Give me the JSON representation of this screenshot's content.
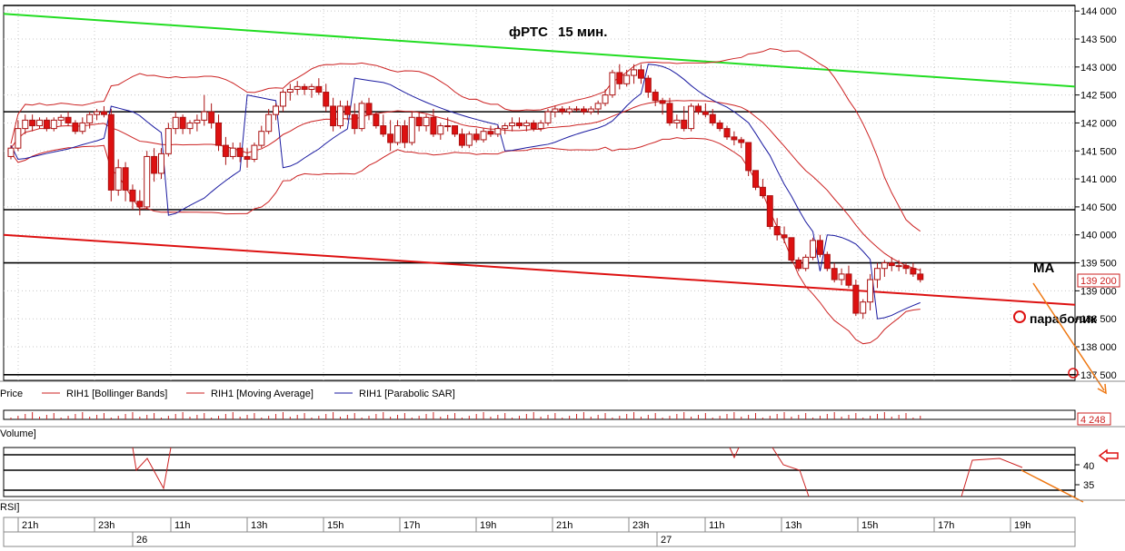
{
  "chart_data": {
    "type": "candlestick",
    "title": "фРТС",
    "subtitle": "15 мин.",
    "price_axis": {
      "ticks": [
        "144 000",
        "143 500",
        "143 000",
        "142 500",
        "142 000",
        "141 500",
        "141 000",
        "140 500",
        "140 000",
        "139 500",
        "139 000",
        "138 500",
        "138 000",
        "137 500"
      ],
      "ylim": [
        137400,
        144100
      ],
      "current_price_label": "139 200"
    },
    "time_axis": {
      "ticks": [
        "21h",
        "23h",
        "11h",
        "13h",
        "15h",
        "17h",
        "19h",
        "21h",
        "23h",
        "11h",
        "13h",
        "15h",
        "17h",
        "19h"
      ],
      "days": [
        "26",
        "27"
      ]
    },
    "candles": [
      [
        141400,
        141600,
        141350,
        141550
      ],
      [
        141550,
        142050,
        141500,
        141900
      ],
      [
        141900,
        142150,
        141800,
        142050
      ],
      [
        142050,
        142150,
        141850,
        141950
      ],
      [
        141950,
        142100,
        141900,
        142050
      ],
      [
        142050,
        142100,
        141850,
        141900
      ],
      [
        141900,
        142100,
        141850,
        142050
      ],
      [
        142050,
        142150,
        141950,
        142100
      ],
      [
        142100,
        142200,
        141950,
        142000
      ],
      [
        142000,
        142050,
        141800,
        141850
      ],
      [
        141850,
        142100,
        141800,
        142000
      ],
      [
        142000,
        142200,
        141900,
        142150
      ],
      [
        142150,
        142250,
        142050,
        142200
      ],
      [
        142200,
        142300,
        142100,
        142150
      ],
      [
        142150,
        142250,
        140600,
        140800
      ],
      [
        140800,
        141350,
        140700,
        141200
      ],
      [
        141200,
        141300,
        140600,
        140800
      ],
      [
        140800,
        140900,
        140450,
        140600
      ],
      [
        140600,
        140800,
        140350,
        140500
      ],
      [
        140500,
        141500,
        140450,
        141400
      ],
      [
        141400,
        141550,
        140950,
        141100
      ],
      [
        141100,
        141550,
        141000,
        141450
      ],
      [
        141450,
        142000,
        141400,
        141900
      ],
      [
        141900,
        142200,
        141800,
        142100
      ],
      [
        142100,
        142150,
        141800,
        141900
      ],
      [
        141900,
        142050,
        141800,
        142000
      ],
      [
        142000,
        142150,
        141850,
        142050
      ],
      [
        142050,
        142500,
        141950,
        142200
      ],
      [
        142200,
        142350,
        141900,
        142000
      ],
      [
        142000,
        142150,
        141500,
        141600
      ],
      [
        141600,
        141750,
        141250,
        141400
      ],
      [
        141400,
        141650,
        141350,
        141550
      ],
      [
        141550,
        141650,
        141300,
        141400
      ],
      [
        141400,
        141550,
        141200,
        141350
      ],
      [
        141350,
        141650,
        141300,
        141600
      ],
      [
        141600,
        141950,
        141550,
        141850
      ],
      [
        141850,
        142250,
        141800,
        142150
      ],
      [
        142150,
        142350,
        142050,
        142300
      ],
      [
        142300,
        142600,
        142200,
        142550
      ],
      [
        142550,
        142700,
        142400,
        142600
      ],
      [
        142600,
        142750,
        142500,
        142650
      ],
      [
        142650,
        142700,
        142500,
        142600
      ],
      [
        142600,
        142700,
        142450,
        142650
      ],
      [
        142650,
        142800,
        142500,
        142550
      ],
      [
        142550,
        142700,
        142200,
        142300
      ],
      [
        142300,
        142450,
        141850,
        141950
      ],
      [
        141950,
        142400,
        141900,
        142300
      ],
      [
        142300,
        142400,
        142050,
        142150
      ],
      [
        142150,
        142350,
        141800,
        141900
      ],
      [
        141900,
        142400,
        141850,
        142350
      ],
      [
        142350,
        142450,
        142050,
        142150
      ],
      [
        142150,
        142200,
        141900,
        141950
      ],
      [
        141950,
        142150,
        141750,
        141800
      ],
      [
        141800,
        142050,
        141500,
        141650
      ],
      [
        141650,
        142050,
        141600,
        141950
      ],
      [
        141950,
        142050,
        141550,
        141650
      ],
      [
        141650,
        142200,
        141600,
        142100
      ],
      [
        142100,
        142200,
        141850,
        141950
      ],
      [
        141950,
        142150,
        141850,
        142100
      ],
      [
        142100,
        142250,
        141750,
        141800
      ],
      [
        141800,
        142000,
        141700,
        141950
      ],
      [
        141950,
        142100,
        141850,
        141950
      ],
      [
        141950,
        141950,
        141750,
        141800
      ],
      [
        141800,
        141900,
        141550,
        141600
      ],
      [
        141600,
        141850,
        141550,
        141800
      ],
      [
        141800,
        141900,
        141650,
        141700
      ],
      [
        141700,
        141900,
        141650,
        141850
      ],
      [
        141850,
        141950,
        141750,
        141800
      ],
      [
        141800,
        141950,
        141750,
        141900
      ],
      [
        141900,
        142000,
        141800,
        141950
      ],
      [
        141950,
        142100,
        141850,
        142000
      ],
      [
        142000,
        142100,
        141900,
        141950
      ],
      [
        141950,
        142050,
        141850,
        142000
      ],
      [
        142000,
        142050,
        141850,
        141900
      ],
      [
        141900,
        142050,
        141850,
        142000
      ],
      [
        142000,
        142250,
        141950,
        142200
      ],
      [
        142200,
        142300,
        142100,
        142250
      ],
      [
        142250,
        142300,
        142150,
        142200
      ],
      [
        142200,
        142300,
        142150,
        142250
      ],
      [
        142250,
        142300,
        142200,
        142250
      ],
      [
        142250,
        142300,
        142150,
        142200
      ],
      [
        142200,
        142300,
        142150,
        142250
      ],
      [
        142250,
        142400,
        142150,
        142350
      ],
      [
        142350,
        142600,
        142300,
        142500
      ],
      [
        142500,
        142950,
        142450,
        142900
      ],
      [
        142900,
        143050,
        142600,
        142700
      ],
      [
        142700,
        142950,
        142650,
        142850
      ],
      [
        142850,
        143050,
        142700,
        142950
      ],
      [
        142950,
        143050,
        142700,
        142800
      ],
      [
        142800,
        142850,
        142450,
        142550
      ],
      [
        142550,
        142600,
        142300,
        142400
      ],
      [
        142400,
        142450,
        142150,
        142350
      ],
      [
        142350,
        142450,
        141950,
        142000
      ],
      [
        142000,
        142150,
        141900,
        142050
      ],
      [
        142050,
        142300,
        141850,
        141900
      ],
      [
        141900,
        142350,
        141850,
        142300
      ],
      [
        142300,
        142350,
        142150,
        142200
      ],
      [
        142200,
        142350,
        142100,
        142150
      ],
      [
        142150,
        142250,
        141950,
        142000
      ],
      [
        142000,
        142050,
        141850,
        141900
      ],
      [
        141900,
        141950,
        141700,
        141750
      ],
      [
        141750,
        141850,
        141600,
        141700
      ],
      [
        141700,
        141750,
        141550,
        141650
      ],
      [
        141650,
        141650,
        141050,
        141150
      ],
      [
        141150,
        141150,
        140800,
        140850
      ],
      [
        140850,
        141000,
        140650,
        140700
      ],
      [
        140700,
        140700,
        140100,
        140150
      ],
      [
        140150,
        140300,
        139900,
        140000
      ],
      [
        140000,
        140150,
        139850,
        139950
      ],
      [
        139950,
        139950,
        139500,
        139550
      ],
      [
        139550,
        139600,
        139350,
        139400
      ],
      [
        139400,
        139650,
        139350,
        139600
      ],
      [
        139600,
        139950,
        139550,
        139900
      ],
      [
        139900,
        140000,
        139600,
        139650
      ],
      [
        139650,
        139700,
        139350,
        139400
      ],
      [
        139400,
        139500,
        139150,
        139200
      ],
      [
        139200,
        139400,
        139100,
        139300
      ],
      [
        139300,
        139450,
        139050,
        139100
      ],
      [
        139100,
        139200,
        138550,
        138600
      ],
      [
        138600,
        138850,
        138500,
        138800
      ],
      [
        138800,
        139300,
        138650,
        139200
      ],
      [
        139200,
        139500,
        139050,
        139400
      ],
      [
        139400,
        139550,
        139250,
        139500
      ],
      [
        139500,
        139600,
        139350,
        139450
      ],
      [
        139450,
        139550,
        139350,
        139450
      ],
      [
        139450,
        139500,
        139300,
        139400
      ],
      [
        139400,
        139500,
        139250,
        139300
      ],
      [
        139300,
        139400,
        139150,
        139200
      ]
    ],
    "trendlines": [
      {
        "color": "#22dd22",
        "from": [
          0,
          143950
        ],
        "to": [
          129,
          142650
        ]
      },
      {
        "color": "#dd1111",
        "from": [
          0,
          140000
        ],
        "to": [
          129,
          138750
        ]
      }
    ],
    "levels": [
      144100,
      142200,
      140450,
      139500,
      137500
    ],
    "legend": [
      "Price",
      "RIH1 [Bollinger Bands]",
      "RIH1 [Moving Average]",
      "RIH1 [Parabolic SAR]"
    ],
    "annotations": {
      "ma_label": "МА",
      "parabolic_label": "параболик"
    },
    "volume": {
      "label": "Volume]",
      "last_value": "4 248"
    },
    "rsi": {
      "label": "RSI]",
      "ticks": [
        "40",
        "35"
      ]
    }
  },
  "colors": {
    "candle_up": "#ffffff",
    "candle_down": "#dd1111",
    "wick": "#aa1111",
    "bollinger": "#cc2222",
    "ma": "#cc2222",
    "sar": "#1a1aa0",
    "trend_up": "#22dd22",
    "trend_down": "#dd1111",
    "arrow": "#ee7711"
  }
}
